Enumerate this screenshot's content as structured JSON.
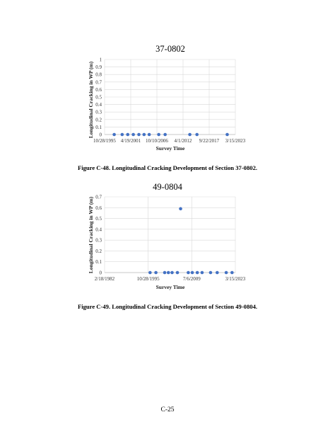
{
  "chart_data": [
    {
      "type": "scatter",
      "title": "37-0802",
      "xlabel": "Survey Time",
      "ylabel": "Longitudinal Cracking in WP (m)",
      "ylim": [
        0,
        1
      ],
      "y_ticks": [
        "0",
        "0.1",
        "0.2",
        "0.3",
        "0.4",
        "0.5",
        "0.6",
        "0.7",
        "0.8",
        "0.9",
        "1"
      ],
      "x_ticks": [
        "10/28/1995",
        "4/19/2001",
        "10/10/2006",
        "4/1/2012",
        "9/22/2017",
        "3/15/2023"
      ],
      "xlim": [
        "1995-10-28",
        "2023-03-15"
      ],
      "grid": true,
      "color": "#4472c4",
      "points": [
        {
          "x": "1997-11-01",
          "y": 0
        },
        {
          "x": "1999-07-01",
          "y": 0
        },
        {
          "x": "2000-09-01",
          "y": 0
        },
        {
          "x": "2001-11-01",
          "y": 0
        },
        {
          "x": "2003-01-01",
          "y": 0
        },
        {
          "x": "2004-02-01",
          "y": 0
        },
        {
          "x": "2005-03-01",
          "y": 0
        },
        {
          "x": "2007-03-01",
          "y": 0
        },
        {
          "x": "2008-07-01",
          "y": 0
        },
        {
          "x": "2013-09-01",
          "y": 0
        },
        {
          "x": "2015-03-01",
          "y": 0
        },
        {
          "x": "2021-07-01",
          "y": 0
        }
      ]
    },
    {
      "type": "scatter",
      "title": "49-0804",
      "xlabel": "Survey Time",
      "ylabel": "Longitudinal Cracking in WP (m)",
      "ylim": [
        0,
        0.7
      ],
      "y_ticks": [
        "0",
        "0.1",
        "0.2",
        "0.3",
        "0.4",
        "0.5",
        "0.6",
        "0.7"
      ],
      "x_ticks": [
        "2/18/1982",
        "10/28/1995",
        "7/6/2009",
        "3/15/2023"
      ],
      "xlim": [
        "1982-02-18",
        "2023-03-15"
      ],
      "grid": true,
      "color": "#4472c4",
      "points": [
        {
          "x": "1996-06-01",
          "y": 0
        },
        {
          "x": "1998-04-01",
          "y": 0
        },
        {
          "x": "2001-01-01",
          "y": 0
        },
        {
          "x": "2002-03-01",
          "y": 0
        },
        {
          "x": "2003-05-01",
          "y": 0
        },
        {
          "x": "2005-01-01",
          "y": 0
        },
        {
          "x": "2006-01-01",
          "y": 0.59
        },
        {
          "x": "2008-06-01",
          "y": 0
        },
        {
          "x": "2009-09-01",
          "y": 0
        },
        {
          "x": "2011-04-01",
          "y": 0
        },
        {
          "x": "2012-10-01",
          "y": 0
        },
        {
          "x": "2015-06-01",
          "y": 0
        },
        {
          "x": "2017-07-01",
          "y": 0
        },
        {
          "x": "2020-05-01",
          "y": 0
        },
        {
          "x": "2022-03-01",
          "y": 0
        }
      ]
    }
  ],
  "captions": {
    "fig48": "Figure C-48. Longitudinal Cracking Development of Section 37-0802.",
    "fig49": "Figure C-49. Longitudinal Cracking Development of Section 49-0804."
  },
  "page_number": "C-25"
}
